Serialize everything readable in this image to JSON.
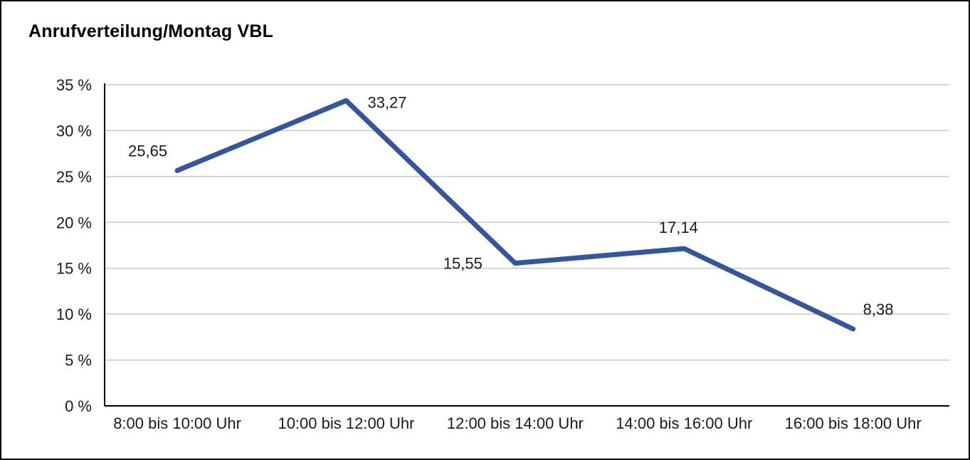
{
  "page": {
    "title": "Anrufverteilung/Montag VBL"
  },
  "chart_data": {
    "type": "line",
    "title": "Anrufverteilung/Montag VBL",
    "categories": [
      "8:00 bis 10:00 Uhr",
      "10:00 bis 12:00 Uhr",
      "12:00 bis 14:00 Uhr",
      "14:00 bis 16:00 Uhr",
      "16:00 bis 18:00 Uhr"
    ],
    "values": [
      25.65,
      33.27,
      15.55,
      17.14,
      8.38
    ],
    "value_labels": [
      "25,65",
      "33,27",
      "15,55",
      "17,14",
      "8,38"
    ],
    "label_positions": [
      "above-left",
      "right",
      "left",
      "above",
      "above-right"
    ],
    "ylim": [
      0,
      35
    ],
    "ytick_step": 5,
    "ytick_labels": [
      "0 %",
      "5 %",
      "10 %",
      "15 %",
      "20 %",
      "25 %",
      "30 %",
      "35 %"
    ],
    "xlabel": "",
    "ylabel": "",
    "grid": true,
    "legend": "none",
    "line_color": "#33569E",
    "grid_color": "#c9c9c9",
    "axis_color": "#000000"
  }
}
